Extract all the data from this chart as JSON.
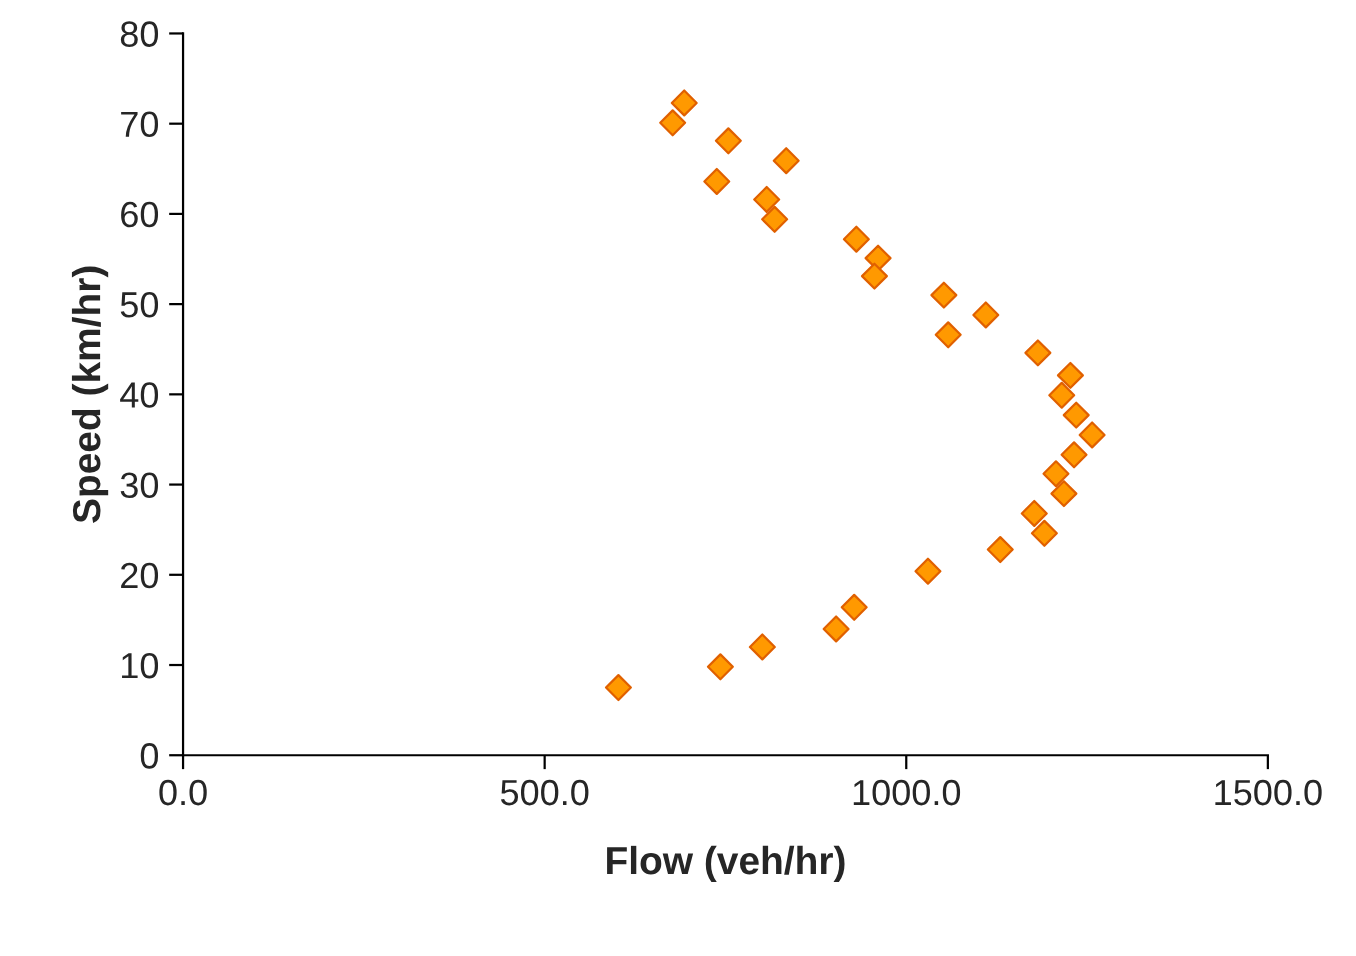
{
  "chart_data": {
    "type": "scatter",
    "xlabel": "Flow (veh/hr)",
    "ylabel": "Speed (km/hr)",
    "x": [
      693,
      677,
      754,
      834,
      738,
      807,
      818,
      931,
      961,
      956,
      1052,
      1110,
      1058,
      1182,
      1227,
      1215,
      1235,
      1257,
      1232,
      1207,
      1218,
      1177,
      1191,
      1130,
      1030,
      928,
      903,
      801,
      743,
      602
    ],
    "series": [
      {
        "color": "#ff9900",
        "values": [
          72.3,
          70.1,
          68.1,
          65.9,
          63.6,
          61.6,
          59.4,
          57.2,
          55.1,
          53.1,
          51.0,
          48.8,
          46.6,
          44.6,
          42.1,
          39.9,
          37.7,
          35.5,
          33.3,
          31.2,
          29.0,
          26.8,
          24.6,
          22.8,
          20.4,
          16.4,
          14.0,
          12.0,
          9.8,
          7.5
        ]
      }
    ],
    "xlim": [
      0,
      1500
    ],
    "xticks": [
      {
        "value": 0,
        "label": "0.0"
      },
      {
        "value": 500,
        "label": "500.0"
      },
      {
        "value": 1000,
        "label": "1000.0"
      },
      {
        "value": 1500,
        "label": "1500.0"
      }
    ],
    "ylim": [
      0,
      80
    ],
    "yticks": [
      0,
      10,
      20,
      30,
      40,
      50,
      60,
      70,
      80
    ],
    "marker": "diamond",
    "grid": false,
    "legend": false
  }
}
